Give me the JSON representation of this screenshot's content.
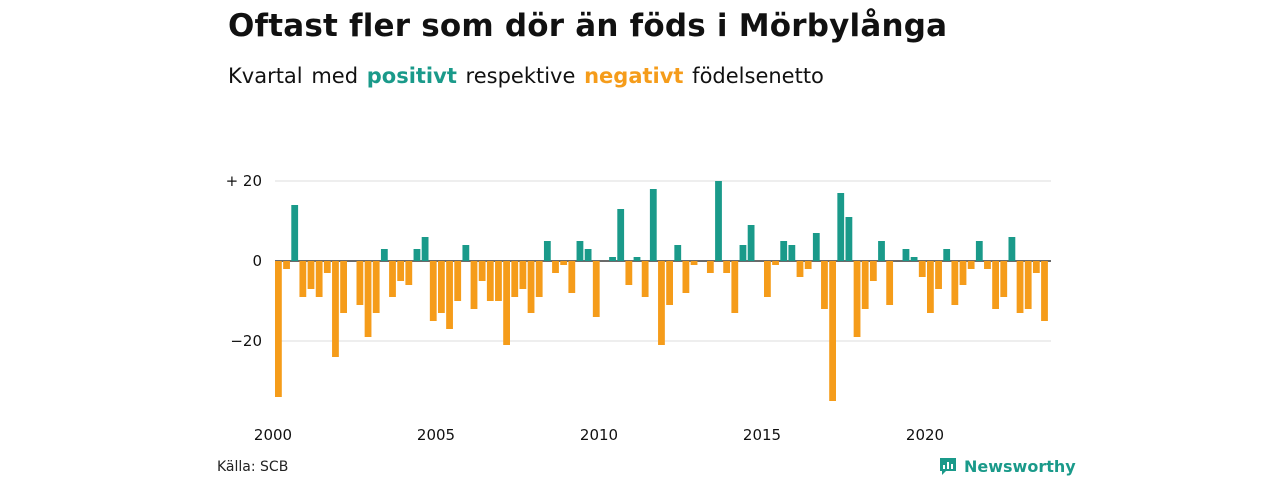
{
  "title": "Oftast fler som dör än föds i Mörbylånga",
  "subtitle": {
    "lead": "Kvartal",
    "w_med": "med",
    "positive": "positivt",
    "w_resp": "respektive",
    "negative": "negativt",
    "tail": "födelsenetto"
  },
  "source": "Källa: SCB",
  "brand": {
    "name": "Newsworthy",
    "icon": "newsworthy-logo-icon"
  },
  "colors": {
    "positive": "#1a9a8a",
    "negative": "#f59c1a",
    "grid": "#dddddd",
    "axis": "#111111"
  },
  "chart_data": {
    "type": "bar",
    "title": "Oftast fler som dör än föds i Mörbylånga",
    "subtitle": "Kvartal med positivt respektive negativt födelsenetto",
    "xlabel": "",
    "ylabel": "",
    "x_start": "2000 Q1",
    "x_tick_labels": [
      "2000",
      "2005",
      "2010",
      "2015",
      "2020"
    ],
    "y_ticks": [
      20,
      0,
      -20
    ],
    "y_tick_labels": [
      "+ 20",
      "0",
      "−20"
    ],
    "ylim": [
      -36,
      21
    ],
    "grid": true,
    "values": [
      -34,
      -2,
      14,
      -9,
      -7,
      -9,
      -3,
      -24,
      -13,
      0,
      -11,
      -19,
      -13,
      3,
      -9,
      -5,
      -6,
      3,
      6,
      -15,
      -13,
      -17,
      -10,
      4,
      -12,
      -5,
      -10,
      -10,
      -21,
      -9,
      -7,
      -13,
      -9,
      5,
      -3,
      -1,
      -8,
      5,
      3,
      -14,
      0,
      1,
      13,
      -6,
      1,
      -9,
      18,
      -21,
      -11,
      4,
      -8,
      -1,
      0,
      -3,
      20,
      -3,
      -13,
      4,
      9,
      0,
      -9,
      -1,
      5,
      4,
      -4,
      -2,
      7,
      -12,
      -35,
      17,
      11,
      -19,
      -12,
      -5,
      5,
      -11,
      0,
      3,
      1,
      -4,
      -13,
      -7,
      3,
      -11,
      -6,
      -2,
      5,
      -2,
      -12,
      -9,
      6,
      -13,
      -12,
      -3,
      -15
    ]
  }
}
